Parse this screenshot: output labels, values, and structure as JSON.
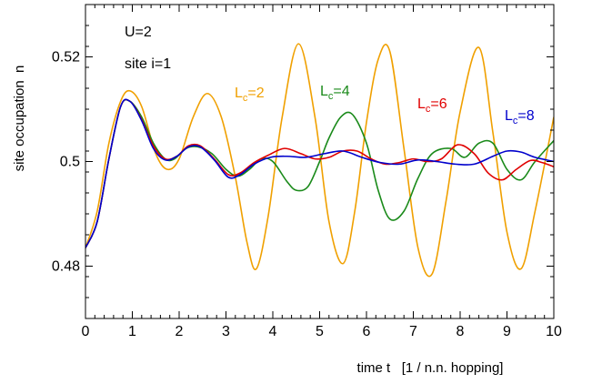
{
  "chart_data": {
    "type": "line",
    "title": "",
    "xlabel": "time t   [1 / n.n. hopping]",
    "ylabel": "site occupation  n",
    "xlim": [
      0,
      10
    ],
    "ylim": [
      0.47,
      0.53
    ],
    "xticks": [
      0,
      1,
      2,
      3,
      4,
      5,
      6,
      7,
      8,
      9,
      10
    ],
    "yticks": [
      0.48,
      0.5,
      0.52
    ],
    "ytick_labels": [
      "0.48",
      "0.5",
      "0.52"
    ],
    "grid": false,
    "annotations": [
      "U=2",
      "site i=1"
    ],
    "series": [
      {
        "name": "Lc=2",
        "label_main": "L",
        "label_sub": "c",
        "label_tail": "=2",
        "color": "#f0a000",
        "x": [
          0,
          0.25,
          0.5,
          0.75,
          0.95,
          1.2,
          1.5,
          1.75,
          2.0,
          2.3,
          2.6,
          2.9,
          3.2,
          3.45,
          3.65,
          3.9,
          4.2,
          4.55,
          4.9,
          5.2,
          5.5,
          5.75,
          6.0,
          6.25,
          6.5,
          6.8,
          7.1,
          7.4,
          7.7,
          8.0,
          8.4,
          8.7,
          9.0,
          9.3,
          9.6,
          10.0
        ],
        "y": [
          0.4835,
          0.4905,
          0.5035,
          0.5115,
          0.5135,
          0.5105,
          0.5015,
          0.4985,
          0.5005,
          0.5085,
          0.513,
          0.5085,
          0.497,
          0.4845,
          0.4795,
          0.4895,
          0.5085,
          0.5225,
          0.5085,
          0.4885,
          0.4805,
          0.4905,
          0.5075,
          0.5195,
          0.521,
          0.5025,
          0.4835,
          0.4785,
          0.4925,
          0.5095,
          0.5218,
          0.5055,
          0.4865,
          0.4795,
          0.4905,
          0.5085
        ]
      },
      {
        "name": "Lc=4",
        "label_main": "L",
        "label_sub": "c",
        "label_tail": "=4",
        "color": "#1a8a1a",
        "x": [
          0,
          0.25,
          0.5,
          0.75,
          0.95,
          1.2,
          1.45,
          1.7,
          1.9,
          2.15,
          2.4,
          2.7,
          3.0,
          3.25,
          3.5,
          3.75,
          4.0,
          4.3,
          4.5,
          4.75,
          5.0,
          5.2,
          5.45,
          5.7,
          6.0,
          6.25,
          6.5,
          6.8,
          7.1,
          7.4,
          7.8,
          8.1,
          8.4,
          8.7,
          9.0,
          9.3,
          9.6,
          10.0
        ],
        "y": [
          0.4835,
          0.4885,
          0.5005,
          0.5105,
          0.5115,
          0.5085,
          0.5035,
          0.5005,
          0.5005,
          0.5025,
          0.5028,
          0.5015,
          0.4985,
          0.4972,
          0.4985,
          0.5005,
          0.5,
          0.4962,
          0.4945,
          0.4952,
          0.5,
          0.5045,
          0.5085,
          0.509,
          0.5035,
          0.4945,
          0.489,
          0.4905,
          0.4968,
          0.5015,
          0.5025,
          0.5008,
          0.5035,
          0.5035,
          0.4985,
          0.4965,
          0.5,
          0.504
        ]
      },
      {
        "name": "Lc=6",
        "label_main": "L",
        "label_sub": "c",
        "label_tail": "=6",
        "color": "#e00000",
        "x": [
          0,
          0.25,
          0.5,
          0.75,
          0.95,
          1.2,
          1.45,
          1.7,
          1.95,
          2.2,
          2.45,
          2.75,
          3.05,
          3.3,
          3.6,
          3.9,
          4.25,
          4.6,
          4.9,
          5.2,
          5.5,
          5.8,
          6.1,
          6.4,
          6.7,
          7.0,
          7.3,
          7.6,
          7.95,
          8.3,
          8.6,
          8.9,
          9.2,
          9.5,
          9.75,
          10.0
        ],
        "y": [
          0.4835,
          0.4885,
          0.5005,
          0.5105,
          0.5115,
          0.508,
          0.503,
          0.5005,
          0.501,
          0.503,
          0.503,
          0.5005,
          0.4975,
          0.4978,
          0.4998,
          0.5012,
          0.5025,
          0.5015,
          0.5005,
          0.5008,
          0.502,
          0.502,
          0.5005,
          0.4995,
          0.4998,
          0.5005,
          0.5,
          0.5005,
          0.5032,
          0.5015,
          0.4978,
          0.4965,
          0.4985,
          0.5002,
          0.4998,
          0.499
        ]
      },
      {
        "name": "Lc=8",
        "label_main": "L",
        "label_sub": "c",
        "label_tail": "=8",
        "color": "#0000cc",
        "x": [
          0,
          0.25,
          0.5,
          0.75,
          0.95,
          1.2,
          1.45,
          1.7,
          1.95,
          2.2,
          2.45,
          2.75,
          3.05,
          3.3,
          3.6,
          3.95,
          4.3,
          4.7,
          5.1,
          5.5,
          5.9,
          6.3,
          6.7,
          7.1,
          7.5,
          7.9,
          8.3,
          8.7,
          9.0,
          9.3,
          9.6,
          10.0
        ],
        "y": [
          0.4835,
          0.4885,
          0.5005,
          0.5105,
          0.5115,
          0.5078,
          0.5025,
          0.5003,
          0.501,
          0.5028,
          0.5028,
          0.5003,
          0.497,
          0.4975,
          0.4995,
          0.5008,
          0.501,
          0.5008,
          0.5015,
          0.502,
          0.5008,
          0.4998,
          0.4995,
          0.5003,
          0.5,
          0.4995,
          0.4995,
          0.501,
          0.502,
          0.5018,
          0.5008,
          0.5
        ]
      }
    ]
  }
}
